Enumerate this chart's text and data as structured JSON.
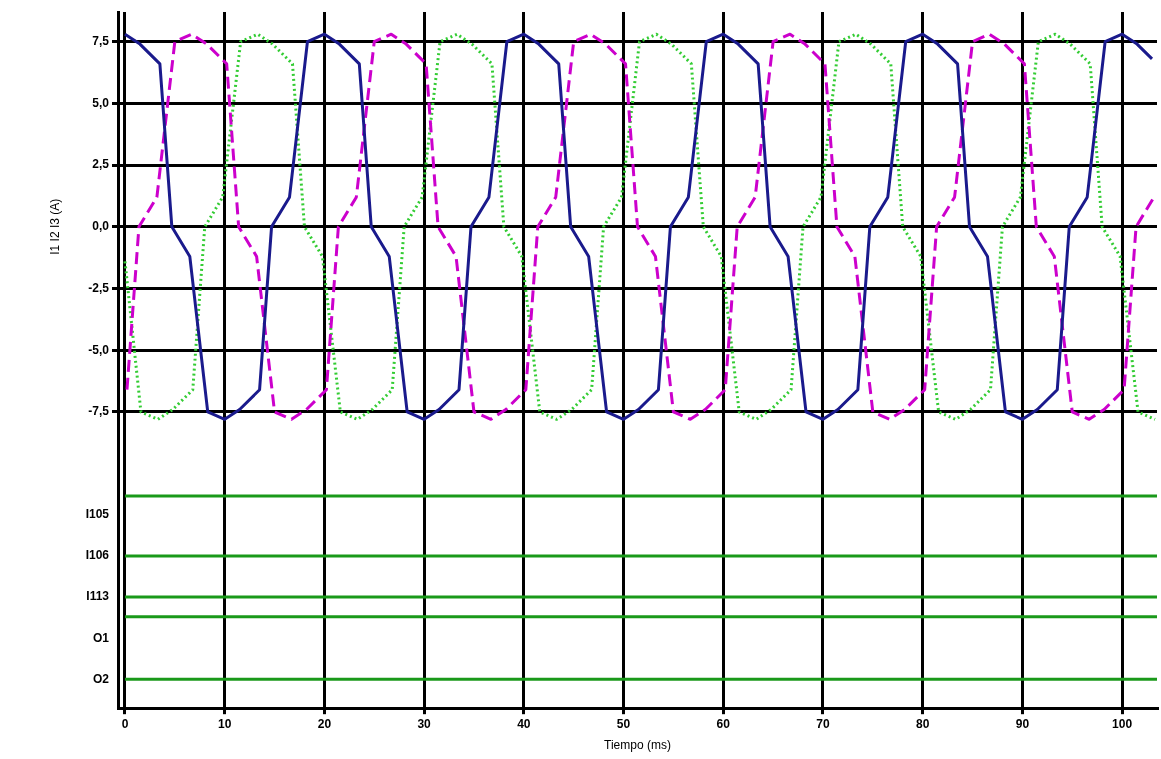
{
  "chart_data": {
    "type": "line",
    "ylabel": "I1 I2 I3 (A)",
    "xlabel": "Tiempo (ms)",
    "xlim": [
      -0.7,
      103.5
    ],
    "ylim": [
      -19.5,
      8.7
    ],
    "xticks": [
      0,
      10,
      20,
      30,
      40,
      50,
      60,
      70,
      80,
      90,
      100
    ],
    "yticks": [
      {
        "value": -18.33,
        "label": "O2"
      },
      {
        "value": -16.67,
        "label": "O1"
      },
      {
        "value": -15,
        "label": "I113"
      },
      {
        "value": -13.33,
        "label": "I106"
      },
      {
        "value": -11.67,
        "label": "I105"
      },
      {
        "value": -7.5,
        "label": "-7,5"
      },
      {
        "value": -5,
        "label": "-5,0"
      },
      {
        "value": -2.5,
        "label": "-2,5"
      },
      {
        "value": 0,
        "label": "0,0"
      },
      {
        "value": 2.5,
        "label": "2,5"
      },
      {
        "value": 5,
        "label": "5,0"
      },
      {
        "value": 7.5,
        "label": "7,5"
      }
    ],
    "grid": true,
    "marker": "none",
    "series": [
      {
        "color": "#1a1a8c",
        "line_style": "solid",
        "x": [
          0,
          1.5,
          3.5,
          4.7,
          6.5,
          8.3,
          10,
          11.5,
          13.5,
          14.7,
          16.5,
          18.3,
          20,
          21.5,
          23.5,
          24.7,
          26.5,
          28.3,
          30,
          31.5,
          33.5,
          34.7,
          36.5,
          38.3,
          40,
          41.5,
          43.5,
          44.7,
          46.5,
          48.3,
          50,
          51.5,
          53.5,
          54.7,
          56.5,
          58.3,
          60,
          61.5,
          63.5,
          64.7,
          66.5,
          68.3,
          70,
          71.5,
          73.5,
          74.7,
          76.5,
          78.3,
          80,
          81.5,
          83.5,
          84.7,
          86.5,
          88.3,
          90,
          91.5,
          93.5,
          94.7,
          96.5,
          98.3,
          100,
          101.5,
          103
        ],
        "values": [
          7.8,
          7.4,
          6.6,
          0,
          -1.2,
          -7.5,
          -7.8,
          -7.4,
          -6.6,
          0,
          1.2,
          7.5,
          7.8,
          7.4,
          6.6,
          0,
          -1.2,
          -7.5,
          -7.8,
          -7.4,
          -6.6,
          0,
          1.2,
          7.5,
          7.8,
          7.4,
          6.6,
          0,
          -1.2,
          -7.5,
          -7.8,
          -7.4,
          -6.6,
          0,
          1.2,
          7.5,
          7.8,
          7.4,
          6.6,
          0,
          -1.2,
          -7.5,
          -7.8,
          -7.4,
          -6.6,
          0,
          1.2,
          7.5,
          7.8,
          7.4,
          6.6,
          0,
          -1.2,
          -7.5,
          -7.8,
          -7.4,
          -6.6,
          0,
          1.2,
          7.5,
          7.8,
          7.4,
          6.8
        ]
      },
      {
        "color": "#cc00cc",
        "line_style": "dashed",
        "x": [
          0.2,
          1.4,
          3.2,
          5,
          6.7,
          8.2,
          10.2,
          11.4,
          13.2,
          15,
          16.7,
          18.2,
          20.2,
          21.4,
          23.2,
          25,
          26.7,
          28.2,
          30.2,
          31.4,
          33.2,
          35,
          36.7,
          38.2,
          40.2,
          41.4,
          43.2,
          45,
          46.7,
          48.2,
          50.2,
          51.4,
          53.2,
          55,
          56.7,
          58.2,
          60.2,
          61.4,
          63.2,
          65,
          66.7,
          68.2,
          70.2,
          71.4,
          73.2,
          75,
          76.7,
          78.2,
          80.2,
          81.4,
          83.2,
          85,
          86.7,
          88.2,
          90.2,
          91.4,
          93.2,
          95,
          96.7,
          98.2,
          100.2,
          101.4,
          103.2
        ],
        "values": [
          -6.6,
          0,
          1.2,
          7.5,
          7.8,
          7.4,
          6.6,
          0,
          -1.2,
          -7.5,
          -7.8,
          -7.4,
          -6.6,
          0,
          1.2,
          7.5,
          7.8,
          7.4,
          6.6,
          0,
          -1.2,
          -7.5,
          -7.8,
          -7.4,
          -6.6,
          0,
          1.2,
          7.5,
          7.8,
          7.4,
          6.6,
          0,
          -1.2,
          -7.5,
          -7.8,
          -7.4,
          -6.6,
          0,
          1.2,
          7.5,
          7.8,
          7.4,
          6.6,
          0,
          -1.2,
          -7.5,
          -7.8,
          -7.4,
          -6.6,
          0,
          1.2,
          7.5,
          7.8,
          7.4,
          6.6,
          0,
          -1.2,
          -7.5,
          -7.8,
          -7.4,
          -6.6,
          0,
          1.2
        ]
      },
      {
        "color": "#33cc33",
        "line_style": "dotted",
        "x": [
          0,
          1.6,
          3.3,
          4.8,
          6.8,
          8,
          9.8,
          11.6,
          13.3,
          14.8,
          16.8,
          18,
          19.8,
          21.6,
          23.3,
          24.8,
          26.8,
          28,
          29.8,
          31.6,
          33.3,
          34.8,
          36.8,
          38,
          39.8,
          41.6,
          43.3,
          44.8,
          46.8,
          48,
          49.8,
          51.6,
          53.3,
          54.8,
          56.8,
          58,
          59.8,
          61.6,
          63.3,
          64.8,
          66.8,
          68,
          69.8,
          71.6,
          73.3,
          74.8,
          76.8,
          78,
          79.8,
          81.6,
          83.3,
          84.8,
          86.8,
          88,
          89.8,
          91.6,
          93.3,
          94.8,
          96.8,
          98,
          99.8,
          101.6,
          103.3
        ],
        "values": [
          -1.4,
          -7.5,
          -7.8,
          -7.4,
          -6.6,
          0,
          1.2,
          7.5,
          7.8,
          7.4,
          6.6,
          0,
          -1.2,
          -7.5,
          -7.8,
          -7.4,
          -6.6,
          0,
          1.2,
          7.5,
          7.8,
          7.4,
          6.6,
          0,
          -1.2,
          -7.5,
          -7.8,
          -7.4,
          -6.6,
          0,
          1.2,
          7.5,
          7.8,
          7.4,
          6.6,
          0,
          -1.2,
          -7.5,
          -7.8,
          -7.4,
          -6.6,
          0,
          1.2,
          7.5,
          7.8,
          7.4,
          6.6,
          0,
          -1.2,
          -7.5,
          -7.8,
          -7.4,
          -6.6,
          0,
          1.2,
          7.5,
          7.8,
          7.4,
          6.6,
          0,
          -1.2,
          -7.5,
          -7.8
        ]
      },
      {
        "color": "#1a991a",
        "line_style": "solid",
        "x": [
          0,
          103.5
        ],
        "values": [
          -10.9,
          -10.9
        ]
      },
      {
        "color": "#1a991a",
        "line_style": "solid",
        "x": [
          0,
          103.5
        ],
        "values": [
          -13.33,
          -13.33
        ]
      },
      {
        "color": "#1a991a",
        "line_style": "solid",
        "x": [
          0,
          103.5
        ],
        "values": [
          -15,
          -15
        ]
      },
      {
        "color": "#1a991a",
        "line_style": "solid",
        "x": [
          0,
          103.5
        ],
        "values": [
          -15.8,
          -15.8
        ]
      },
      {
        "color": "#1a991a",
        "line_style": "solid",
        "x": [
          0,
          103.5
        ],
        "values": [
          -18.33,
          -18.33
        ]
      }
    ]
  }
}
